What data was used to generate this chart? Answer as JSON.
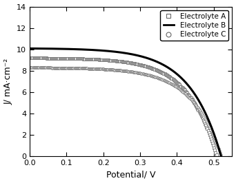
{
  "title": "",
  "xlabel": "Potential/ V",
  "ylabel": "J/ mA·cm⁻²",
  "xlim": [
    0.0,
    0.55
  ],
  "ylim": [
    0,
    14
  ],
  "yticks": [
    0,
    2,
    4,
    6,
    8,
    10,
    12,
    14
  ],
  "xticks": [
    0.0,
    0.1,
    0.2,
    0.3,
    0.4,
    0.5
  ],
  "curves": [
    {
      "label": "Electrolyte A",
      "jsc": 9.2,
      "voc": 0.508,
      "n": 6.5,
      "style": "scatter_square",
      "color": "#666666",
      "marker": "s",
      "markersize": 2.5,
      "markeredgewidth": 0.5,
      "linewidth": 1.5
    },
    {
      "label": "Electrolyte B",
      "jsc": 10.1,
      "voc": 0.52,
      "n": 6.2,
      "style": "line",
      "color": "#000000",
      "linewidth": 2.2
    },
    {
      "label": "Electrolyte C",
      "jsc": 8.3,
      "voc": 0.52,
      "n": 6.5,
      "style": "scatter_circle",
      "color": "#666666",
      "marker": "o",
      "markersize": 2.5,
      "markeredgewidth": 0.5,
      "linewidth": 1.5
    }
  ],
  "legend_loc": "upper right",
  "legend_fontsize": 7.5,
  "figsize": [
    3.42,
    2.66
  ],
  "dpi": 100,
  "bg_color": "#ffffff"
}
